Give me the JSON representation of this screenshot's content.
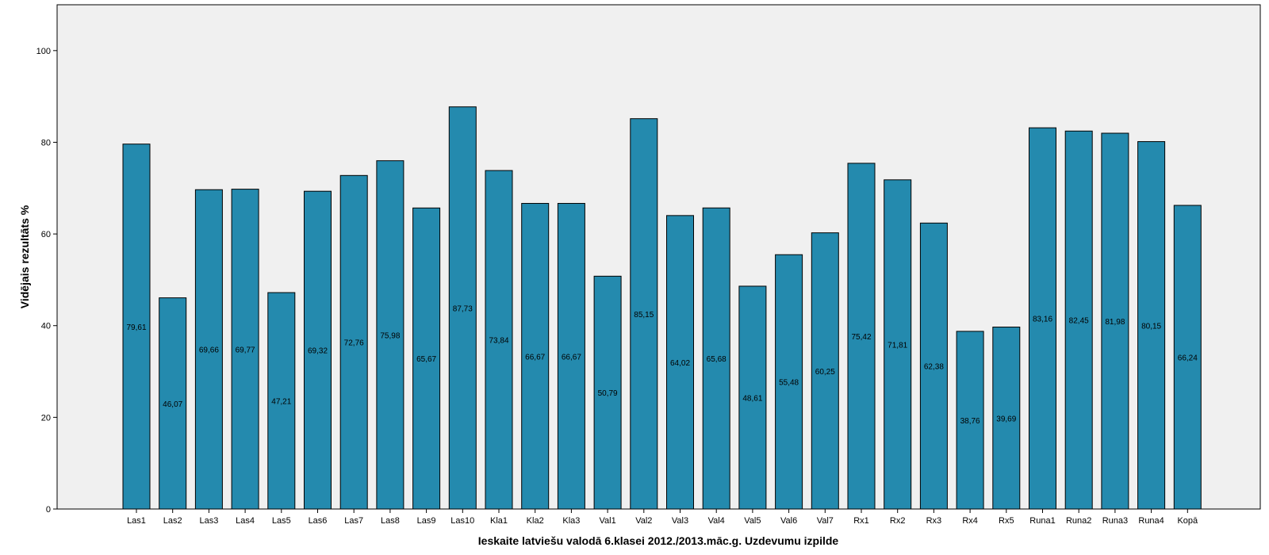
{
  "chart_data": {
    "type": "bar",
    "title": "",
    "xlabel": "Ieskaite latviešu valodā 6.klasei 2012./2013.māc.g. Uzdevumu izpilde",
    "ylabel": "Vidējais rezultāts %",
    "ylim": [
      0,
      110
    ],
    "yticks": [
      0,
      20,
      40,
      60,
      80,
      100
    ],
    "grid": false,
    "legend": "none",
    "bar_color": "#248AAE",
    "plot_background": "#F0F0F0",
    "categories": [
      "Las1",
      "Las2",
      "Las3",
      "Las4",
      "Las5",
      "Las6",
      "Las7",
      "Las8",
      "Las9",
      "Las10",
      "Kla1",
      "Kla2",
      "Kla3",
      "Val1",
      "Val2",
      "Val3",
      "Val4",
      "Val5",
      "Val6",
      "Val7",
      "Rx1",
      "Rx2",
      "Rx3",
      "Rx4",
      "Rx5",
      "Runa1",
      "Runa2",
      "Runa3",
      "Runa4",
      "Kopā"
    ],
    "values": [
      79.61,
      46.07,
      69.66,
      69.77,
      47.21,
      69.32,
      72.76,
      75.98,
      65.67,
      87.73,
      73.84,
      66.67,
      66.67,
      50.79,
      85.15,
      64.02,
      65.68,
      48.61,
      55.48,
      60.25,
      75.42,
      71.81,
      62.38,
      38.76,
      39.69,
      83.16,
      82.45,
      81.98,
      80.15,
      66.24
    ],
    "value_labels": [
      "79,61",
      "46,07",
      "69,66",
      "69,77",
      "47,21",
      "69,32",
      "72,76",
      "75,98",
      "65,67",
      "87,73",
      "73,84",
      "66,67",
      "66,67",
      "50,79",
      "85,15",
      "64,02",
      "65,68",
      "48,61",
      "55,48",
      "60,25",
      "75,42",
      "71,81",
      "62,38",
      "38,76",
      "39,69",
      "83,16",
      "82,45",
      "81,98",
      "80,15",
      "66,24"
    ]
  }
}
